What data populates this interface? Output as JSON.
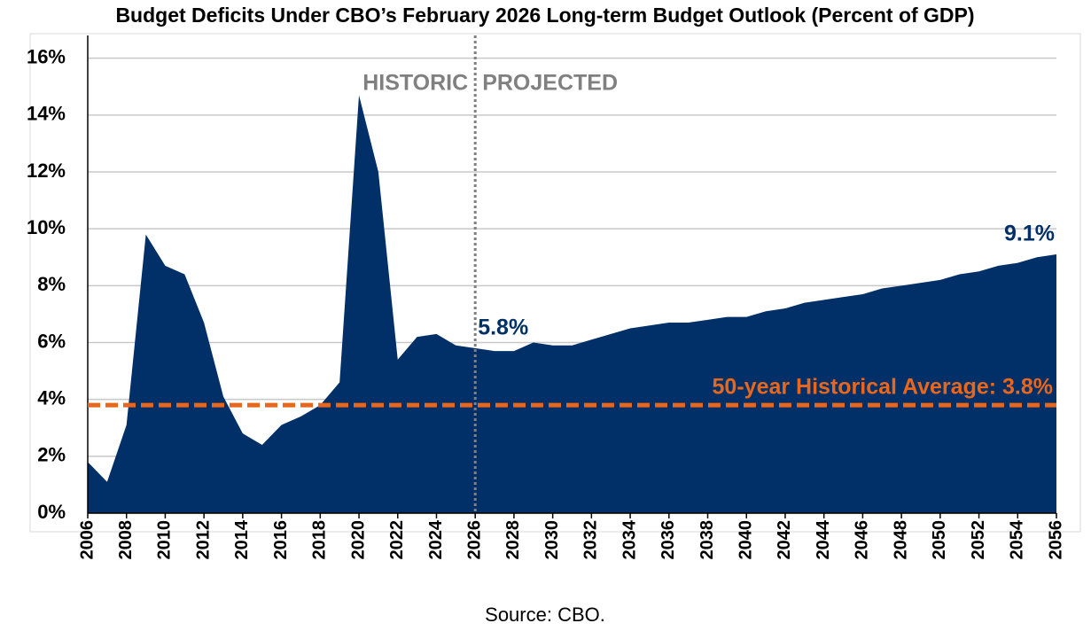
{
  "chart_data": {
    "type": "area",
    "title": "Budget Deficits Under CBO’s February 2026 Long-term Budget Outlook (Percent of GDP)",
    "source": "Source: CBO.",
    "x": [
      2006,
      2007,
      2008,
      2009,
      2010,
      2011,
      2012,
      2013,
      2014,
      2015,
      2016,
      2017,
      2018,
      2019,
      2020,
      2021,
      2022,
      2023,
      2024,
      2025,
      2026,
      2027,
      2028,
      2029,
      2030,
      2031,
      2032,
      2033,
      2034,
      2035,
      2036,
      2037,
      2038,
      2039,
      2040,
      2041,
      2042,
      2043,
      2044,
      2045,
      2046,
      2047,
      2048,
      2049,
      2050,
      2051,
      2052,
      2053,
      2054,
      2055,
      2056
    ],
    "values": [
      1.8,
      1.1,
      3.1,
      9.8,
      8.7,
      8.4,
      6.7,
      4.1,
      2.8,
      2.4,
      3.1,
      3.4,
      3.8,
      4.6,
      14.7,
      12.0,
      5.4,
      6.2,
      6.3,
      5.9,
      5.8,
      5.7,
      5.7,
      6.0,
      5.9,
      5.9,
      6.1,
      6.3,
      6.5,
      6.6,
      6.7,
      6.7,
      6.8,
      6.9,
      6.9,
      7.1,
      7.2,
      7.4,
      7.5,
      7.6,
      7.7,
      7.9,
      8.0,
      8.1,
      8.2,
      8.4,
      8.5,
      8.7,
      8.8,
      9.0,
      9.1
    ],
    "value_labels": [
      null,
      null,
      null,
      null,
      null,
      null,
      null,
      null,
      null,
      null,
      null,
      null,
      null,
      null,
      null,
      null,
      null,
      null,
      null,
      null,
      "5.8%",
      null,
      null,
      null,
      null,
      null,
      null,
      null,
      null,
      null,
      null,
      null,
      null,
      null,
      null,
      null,
      null,
      null,
      null,
      null,
      null,
      null,
      null,
      null,
      null,
      null,
      null,
      null,
      null,
      null,
      "9.1%"
    ],
    "color": "#003067",
    "xlim": [
      2006,
      2056
    ],
    "xticks": [
      2006,
      2008,
      2010,
      2012,
      2014,
      2016,
      2018,
      2020,
      2022,
      2024,
      2026,
      2028,
      2030,
      2032,
      2034,
      2036,
      2038,
      2040,
      2042,
      2044,
      2046,
      2048,
      2050,
      2052,
      2054,
      2056
    ],
    "ylim": [
      0,
      16.8
    ],
    "yticks": [
      {
        "value": 0,
        "label": "0%"
      },
      {
        "value": 2,
        "label": "2%"
      },
      {
        "value": 4,
        "label": "4%"
      },
      {
        "value": 6,
        "label": "6%"
      },
      {
        "value": 8,
        "label": "8%"
      },
      {
        "value": 10,
        "label": "10%"
      },
      {
        "value": 12,
        "label": "12%"
      },
      {
        "value": 14,
        "label": "14%"
      },
      {
        "value": 16,
        "label": "16%"
      }
    ],
    "grid": true,
    "reference_line": {
      "value": 3.8,
      "label": "50-year Historical Average: 3.8%",
      "color": "#e8671c"
    },
    "divider": {
      "x": 2026,
      "left_label": "HISTORIC",
      "right_label": "PROJECTED",
      "color": "#808080"
    }
  }
}
